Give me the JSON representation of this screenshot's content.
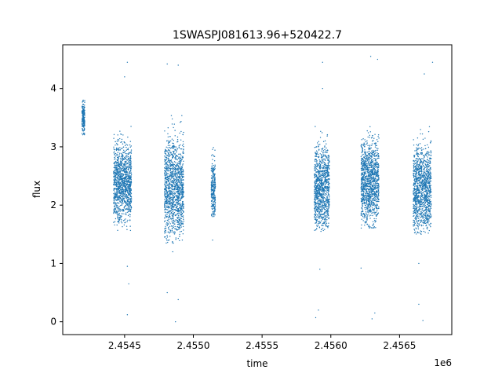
{
  "chart_data": {
    "type": "scatter",
    "title": "1SWASPJ081613.96+520422.7",
    "xlabel": "time",
    "ylabel": "flux",
    "x_offset_label": "1e6",
    "xlim": [
      2.45405,
      2.45688
    ],
    "ylim": [
      -0.22,
      4.75
    ],
    "x_ticks": [
      2.4545,
      2.455,
      2.4555,
      2.456,
      2.4565
    ],
    "x_tick_labels": [
      "2.4545",
      "2.4550",
      "2.4555",
      "2.4560",
      "2.4565"
    ],
    "y_ticks": [
      0,
      1,
      2,
      3,
      4
    ],
    "y_tick_labels": [
      "0",
      "1",
      "2",
      "3",
      "4"
    ],
    "grid": false,
    "marker_color": "#1f77b4",
    "observing_seasons": [
      {
        "x_start": 2.45419,
        "x_end": 2.45421,
        "flux_low": 3.1,
        "flux_high": 3.9,
        "flux_center": 3.5
      },
      {
        "x_start": 2.45442,
        "x_end": 2.45455,
        "flux_low": 1.55,
        "flux_high": 3.6,
        "flux_center": 2.4
      },
      {
        "x_start": 2.45479,
        "x_end": 2.45493,
        "flux_low": 1.3,
        "flux_high": 3.9,
        "flux_center": 2.3
      },
      {
        "x_start": 2.45513,
        "x_end": 2.45516,
        "flux_low": 1.8,
        "flux_high": 3.4,
        "flux_center": 2.3
      },
      {
        "x_start": 2.45588,
        "x_end": 2.45599,
        "flux_low": 1.55,
        "flux_high": 3.8,
        "flux_center": 2.3
      },
      {
        "x_start": 2.45622,
        "x_end": 2.45635,
        "flux_low": 1.6,
        "flux_high": 3.8,
        "flux_center": 2.4
      },
      {
        "x_start": 2.4566,
        "x_end": 2.45673,
        "flux_low": 1.5,
        "flux_high": 3.7,
        "flux_center": 2.3
      }
    ],
    "outliers": [
      [
        2.45452,
        4.45
      ],
      [
        2.4545,
        4.2
      ],
      [
        2.45452,
        0.95
      ],
      [
        2.45453,
        0.65
      ],
      [
        2.45452,
        0.12
      ],
      [
        2.45481,
        4.42
      ],
      [
        2.45489,
        4.4
      ],
      [
        2.45481,
        0.5
      ],
      [
        2.45485,
        1.2
      ],
      [
        2.45489,
        0.38
      ],
      [
        2.45487,
        0.0
      ],
      [
        2.45514,
        1.4
      ],
      [
        2.45594,
        4.45
      ],
      [
        2.45594,
        4.0
      ],
      [
        2.45592,
        0.9
      ],
      [
        2.45591,
        0.2
      ],
      [
        2.45589,
        0.07
      ],
      [
        2.45629,
        4.55
      ],
      [
        2.45634,
        4.5
      ],
      [
        2.45622,
        0.92
      ],
      [
        2.45632,
        0.15
      ],
      [
        2.4563,
        0.05
      ],
      [
        2.45674,
        4.45
      ],
      [
        2.45668,
        4.25
      ],
      [
        2.45664,
        1.0
      ],
      [
        2.45664,
        0.3
      ],
      [
        2.45667,
        0.02
      ]
    ]
  }
}
